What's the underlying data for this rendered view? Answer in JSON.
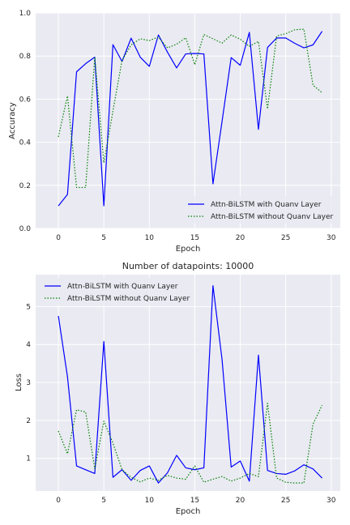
{
  "chart_data": [
    {
      "type": "line",
      "title": "",
      "xlabel": "Epoch",
      "ylabel": "Accuracy",
      "xlim": [
        -2.5,
        31
      ],
      "ylim": [
        0,
        1
      ],
      "xticks": [
        "0",
        "5",
        "10",
        "15",
        "20",
        "25",
        "30"
      ],
      "yticks": [
        "0.0",
        "0.2",
        "0.4",
        "0.6",
        "0.8",
        "1.0"
      ],
      "grid": true,
      "legend_position": "lower-right",
      "x": [
        0,
        1,
        2,
        3,
        4,
        5,
        6,
        7,
        8,
        9,
        10,
        11,
        12,
        13,
        14,
        15,
        16,
        17,
        18,
        19,
        20,
        21,
        22,
        23,
        24,
        25,
        26,
        27,
        28,
        29
      ],
      "series": [
        {
          "name": "Attn-BiLSTM with Quanv Layer",
          "color": "#0000ff",
          "style": "solid",
          "values": [
            0.105,
            0.158,
            0.727,
            0.765,
            0.795,
            0.105,
            0.853,
            0.775,
            0.883,
            0.795,
            0.752,
            0.898,
            0.818,
            0.745,
            0.81,
            0.812,
            0.81,
            0.207,
            0.497,
            0.793,
            0.757,
            0.91,
            0.46,
            0.84,
            0.884,
            0.884,
            0.859,
            0.838,
            0.852,
            0.915
          ]
        },
        {
          "name": "Attn-BiLSTM without Quanv Layer",
          "color": "#008000",
          "style": "dotted",
          "values": [
            0.425,
            0.615,
            0.19,
            0.19,
            0.795,
            0.305,
            0.545,
            0.78,
            0.852,
            0.88,
            0.872,
            0.888,
            0.838,
            0.855,
            0.885,
            0.76,
            0.9,
            0.88,
            0.86,
            0.898,
            0.878,
            0.845,
            0.868,
            0.555,
            0.893,
            0.904,
            0.922,
            0.925,
            0.665,
            0.63
          ]
        }
      ]
    },
    {
      "type": "line",
      "title": "Number of datapoints: 10000",
      "xlabel": "Epoch",
      "ylabel": "Loss",
      "xlim": [
        -2.5,
        31
      ],
      "ylim": [
        0.14,
        5.84
      ],
      "xticks": [
        "0",
        "5",
        "10",
        "15",
        "20",
        "25",
        "30"
      ],
      "yticks": [
        "1",
        "2",
        "3",
        "4",
        "5"
      ],
      "grid": true,
      "legend_position": "upper-left",
      "x": [
        0,
        1,
        2,
        3,
        4,
        5,
        6,
        7,
        8,
        9,
        10,
        11,
        12,
        13,
        14,
        15,
        16,
        17,
        18,
        19,
        20,
        21,
        22,
        23,
        24,
        25,
        26,
        27,
        28,
        29
      ],
      "series": [
        {
          "name": "Attn-BiLSTM with Quanv Layer",
          "color": "#0000ff",
          "style": "solid",
          "values": [
            4.75,
            3.15,
            0.8,
            0.7,
            0.6,
            4.08,
            0.5,
            0.7,
            0.42,
            0.68,
            0.8,
            0.35,
            0.62,
            1.08,
            0.75,
            0.7,
            0.75,
            5.55,
            3.6,
            0.77,
            0.93,
            0.4,
            3.72,
            0.68,
            0.6,
            0.58,
            0.67,
            0.83,
            0.72,
            0.48
          ]
        },
        {
          "name": "Attn-BiLSTM without Quanv Layer",
          "color": "#008000",
          "style": "dotted",
          "values": [
            1.72,
            1.12,
            2.28,
            2.22,
            0.72,
            1.98,
            1.4,
            0.7,
            0.5,
            0.38,
            0.48,
            0.42,
            0.55,
            0.48,
            0.45,
            0.8,
            0.37,
            0.45,
            0.52,
            0.4,
            0.48,
            0.6,
            0.52,
            2.45,
            0.48,
            0.37,
            0.35,
            0.35,
            1.9,
            2.4
          ]
        }
      ]
    }
  ]
}
